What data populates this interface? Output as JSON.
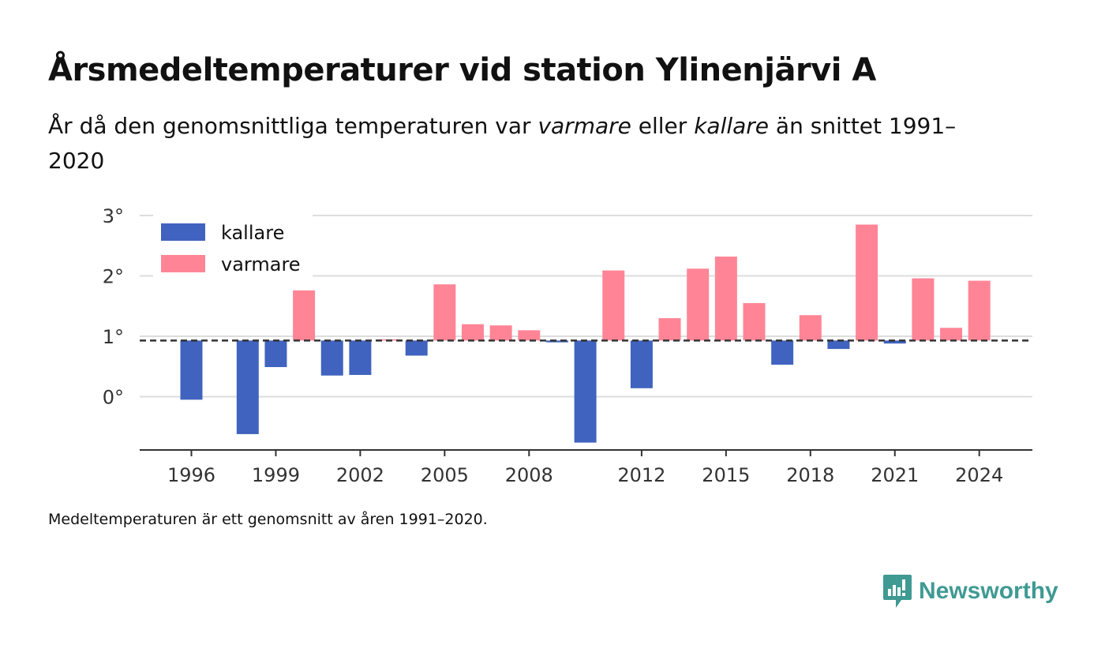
{
  "title": "Årsmedeltemperaturer vid station Ylinenjärvi A",
  "subtitle": {
    "part1": "År då den genomsnittliga temperaturen var ",
    "warm_word": "varmare",
    "part2": " eller ",
    "cold_word": "kallare",
    "part3": " än snittet 1991–2020"
  },
  "footnote": "Medeltemperaturen är ett genomsnitt av åren 1991–2020.",
  "brand": {
    "name": "Newsworthy"
  },
  "colors": {
    "cold": "#4063bf",
    "warm": "#ff8596",
    "grid": "#dddddd",
    "axis": "#333333",
    "brand": "#3f9a93"
  },
  "chart_data": {
    "type": "bar",
    "baseline": 0.93,
    "baseline_style": "dashed",
    "ylim": [
      -0.85,
      3.0
    ],
    "yticks": [
      0,
      1,
      2,
      3
    ],
    "ytick_labels": [
      "0°",
      "1°",
      "2°",
      "3°"
    ],
    "xticks": [
      1996,
      1999,
      2002,
      2005,
      2008,
      2012,
      2015,
      2018,
      2021,
      2024
    ],
    "xtick_labels": [
      "1996",
      "1999",
      "2002",
      "2005",
      "2008",
      "2012",
      "2015",
      "2018",
      "2021",
      "2024"
    ],
    "grid": true,
    "legend": {
      "position": "top-left",
      "entries": [
        {
          "label": "kallare",
          "color": "#4063bf"
        },
        {
          "label": "varmare",
          "color": "#ff8596"
        }
      ]
    },
    "x": [
      1996,
      1998,
      1999,
      2000,
      2001,
      2002,
      2003,
      2004,
      2005,
      2006,
      2007,
      2008,
      2009,
      2010,
      2011,
      2012,
      2013,
      2014,
      2015,
      2016,
      2017,
      2018,
      2019,
      2020,
      2021,
      2022,
      2023,
      2024
    ],
    "values": [
      -0.05,
      -0.62,
      0.49,
      1.76,
      0.35,
      0.36,
      0.95,
      0.68,
      1.86,
      1.2,
      1.18,
      1.1,
      0.9,
      -0.76,
      2.09,
      0.14,
      1.3,
      2.12,
      2.32,
      1.55,
      0.53,
      1.35,
      0.79,
      2.85,
      0.88,
      1.96,
      1.14,
      1.92
    ]
  }
}
